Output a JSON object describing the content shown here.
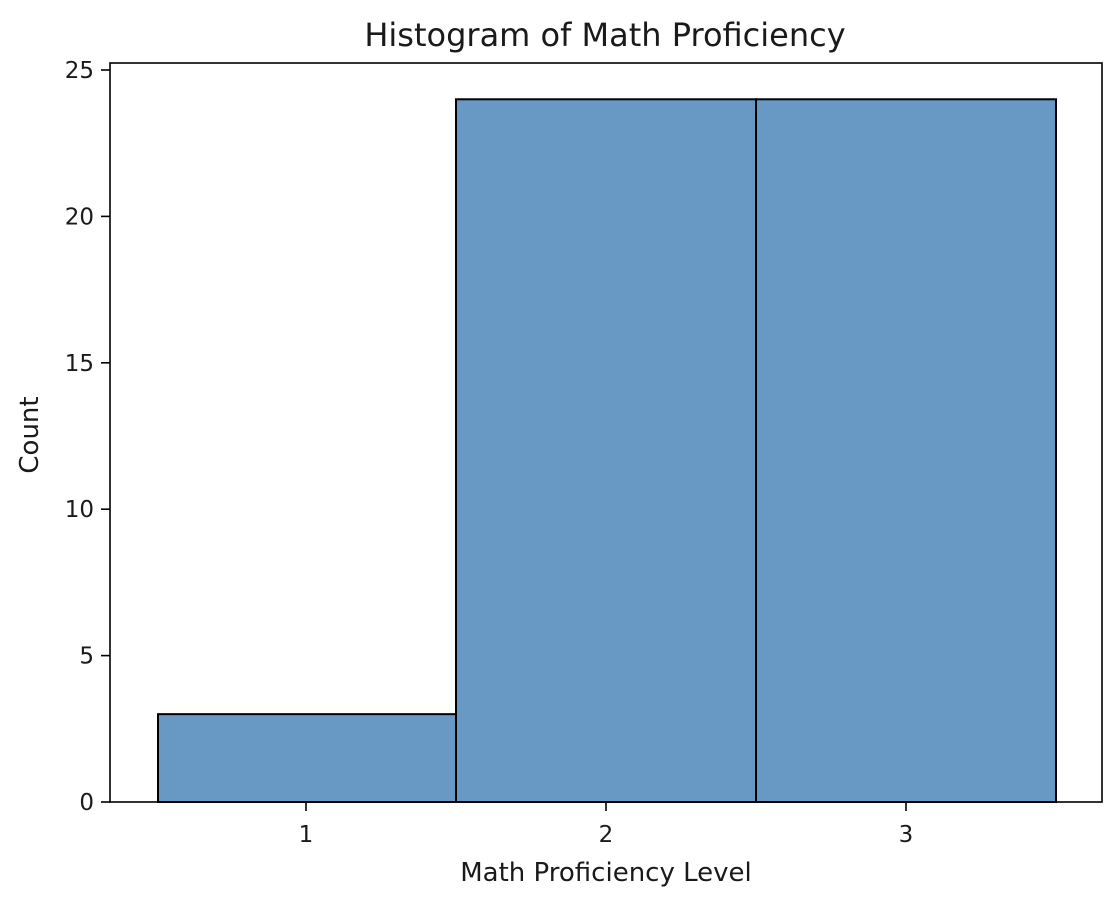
{
  "chart_data": {
    "type": "bar",
    "title": "Histogram of Math Proficiency",
    "xlabel": "Math Proficiency Level",
    "ylabel": "Count",
    "categories": [
      "1",
      "2",
      "3"
    ],
    "values": [
      3,
      24,
      24
    ],
    "x_ticks": [
      "1",
      "2",
      "3"
    ],
    "y_ticks": [
      "0",
      "5",
      "10",
      "15",
      "20",
      "25"
    ],
    "ylim": [
      0,
      25
    ],
    "grid": false,
    "bar_color": "#6899c4"
  }
}
